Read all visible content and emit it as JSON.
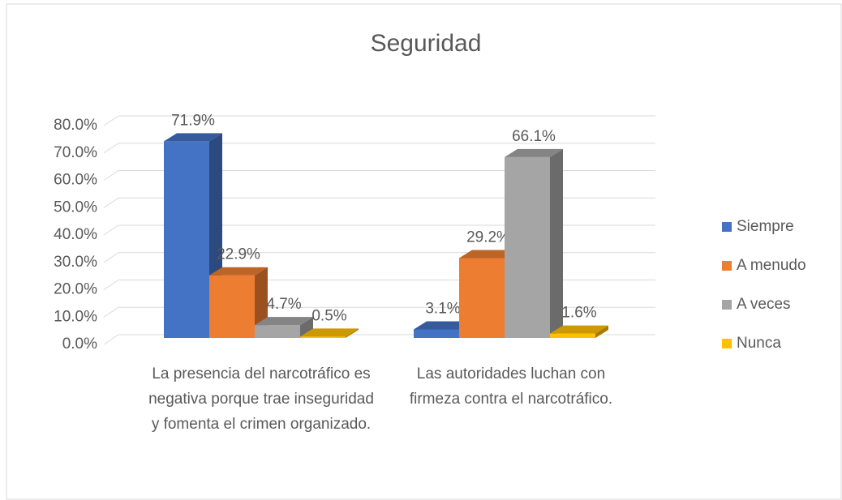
{
  "chart_data": {
    "type": "bar3d",
    "title": "Seguridad",
    "categories": [
      "La presencia del narcotráfico es negativa porque trae inseguridad y fomenta el crimen organizado.",
      "Las autoridades luchan con firmeza contra el narcotráfico."
    ],
    "series": [
      {
        "name": "Siempre",
        "color": "#4472c4",
        "values": [
          71.9,
          3.1
        ],
        "value_labels": [
          "71.9%",
          "3.1%"
        ]
      },
      {
        "name": "A menudo",
        "color": "#ed7d31",
        "values": [
          22.9,
          29.2
        ],
        "value_labels": [
          "22.9%",
          "29.2%"
        ]
      },
      {
        "name": "A veces",
        "color": "#a5a5a5",
        "values": [
          4.7,
          66.1
        ],
        "value_labels": [
          "4.7%",
          "66.1%"
        ]
      },
      {
        "name": "Nunca",
        "color": "#ffc000",
        "values": [
          0.5,
          1.6
        ],
        "value_labels": [
          "0.5%",
          "1.6%"
        ]
      }
    ],
    "ylim": [
      0,
      80
    ],
    "yticks": [
      {
        "value": 0,
        "label": "0.0%"
      },
      {
        "value": 10,
        "label": "10.0%"
      },
      {
        "value": 20,
        "label": "20.0%"
      },
      {
        "value": 30,
        "label": "30.0%"
      },
      {
        "value": 40,
        "label": "40.0%"
      },
      {
        "value": 50,
        "label": "50.0%"
      },
      {
        "value": 60,
        "label": "60.0%"
      },
      {
        "value": 70,
        "label": "70.0%"
      },
      {
        "value": 80,
        "label": "80.0%"
      }
    ],
    "grid": true,
    "legend": "right"
  }
}
